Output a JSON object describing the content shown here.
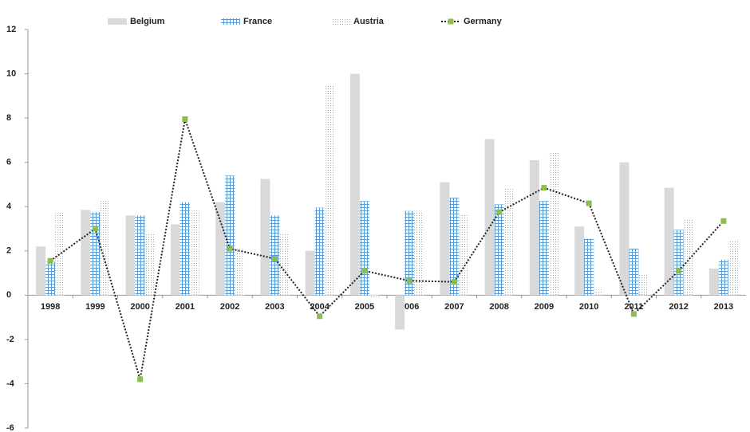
{
  "chart_data": {
    "type": "bar",
    "categories": [
      "1998",
      "1999",
      "2000",
      "2001",
      "2002",
      "2003",
      "2004",
      "2005",
      "2006",
      "2007",
      "2008",
      "2009",
      "2010",
      "2011",
      "2012",
      "2013"
    ],
    "series": [
      {
        "name": "Belgium",
        "color": "#d9d9d9",
        "fill_style": "solid",
        "values": [
          2.2,
          3.85,
          3.6,
          3.2,
          4.2,
          5.25,
          2.0,
          10.0,
          -1.55,
          5.1,
          7.05,
          6.1,
          3.1,
          6.0,
          4.85,
          1.2
        ]
      },
      {
        "name": "France",
        "color": "#5b9bd5",
        "fill_style": "grid",
        "values": [
          1.5,
          3.75,
          3.6,
          4.2,
          5.4,
          3.6,
          3.95,
          4.25,
          3.8,
          4.4,
          4.1,
          4.25,
          2.55,
          2.1,
          2.95,
          1.6
        ]
      },
      {
        "name": "Austria",
        "color": "#a6a6a6",
        "fill_style": "dots",
        "values": [
          3.75,
          4.25,
          2.75,
          3.9,
          2.1,
          2.75,
          9.5,
          -0.1,
          3.8,
          3.65,
          4.8,
          6.45,
          0.25,
          0.95,
          3.4,
          2.5
        ]
      },
      {
        "name": "Germany",
        "type": "line",
        "color": "#222222",
        "marker_color": "#8fbc4f",
        "values": [
          1.55,
          3.0,
          -3.8,
          7.95,
          2.1,
          1.65,
          -0.95,
          1.1,
          0.65,
          0.6,
          3.75,
          4.85,
          4.15,
          -0.85,
          1.1,
          3.35
        ]
      }
    ],
    "ylim": [
      -6,
      12
    ],
    "yticks": [
      -6,
      -4,
      -2,
      0,
      2,
      4,
      6,
      8,
      10,
      12
    ],
    "legend": "top"
  }
}
